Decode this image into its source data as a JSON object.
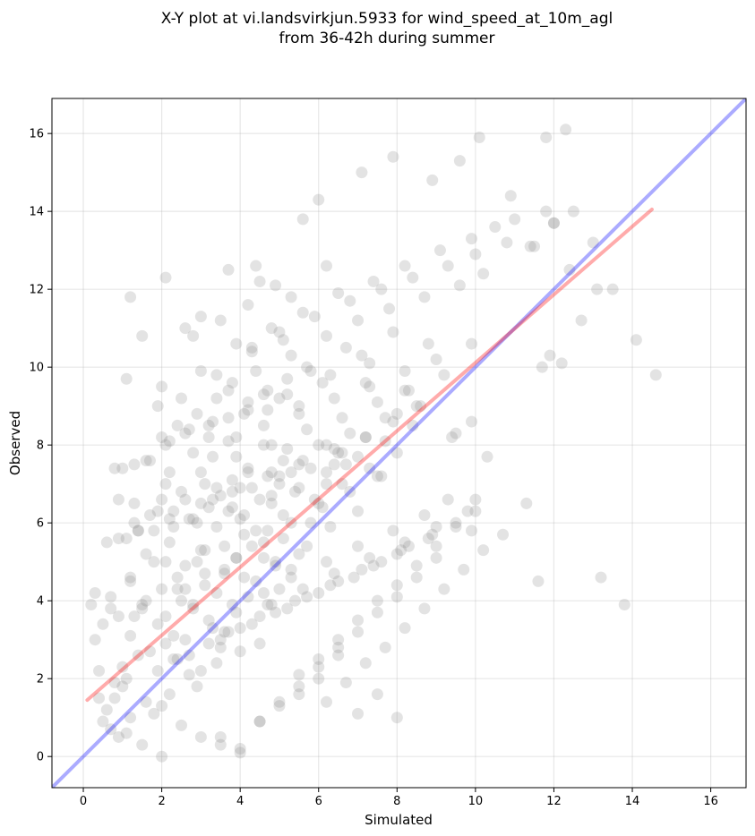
{
  "chart_data": {
    "type": "scatter",
    "title_line1": "X-Y plot at vi.landsvirkjun.5933 for wind_speed_at_10m_agl",
    "title_line2": "from 36-42h during summer",
    "xlabel": "Simulated",
    "ylabel": "Observed",
    "xlim": [
      -0.8,
      16.9
    ],
    "ylim": [
      -0.8,
      16.9
    ],
    "xticks": [
      0,
      2,
      4,
      6,
      8,
      10,
      12,
      14,
      16
    ],
    "yticks": [
      0,
      2,
      4,
      6,
      8,
      10,
      12,
      14,
      16
    ],
    "grid": true,
    "point_color": "#808080",
    "point_opacity": 0.22,
    "reference_line": {
      "color": "#0000ff",
      "opacity": 0.33,
      "x": [
        -0.8,
        16.9
      ],
      "y": [
        -0.8,
        16.9
      ]
    },
    "regression_line": {
      "color": "#ff0000",
      "opacity": 0.33,
      "x": [
        0.1,
        14.5
      ],
      "y": [
        1.45,
        14.05
      ]
    },
    "series": [
      {
        "x": [
          0.7,
          1.6,
          2.4,
          0.9,
          1.2,
          3.0,
          2.2,
          1.8,
          0.5,
          2.9,
          3.4,
          1.1,
          0.8,
          2.6,
          4.0,
          3.7,
          1.4,
          2.0,
          0.6,
          3.2,
          4.5,
          2.7,
          1.9,
          3.9,
          1.0,
          2.3,
          4.8,
          3.5,
          0.4,
          1.7,
          2.8,
          4.2,
          5.0,
          3.3,
          2.1,
          1.3,
          4.4,
          3.8,
          0.3,
          2.5,
          5.3,
          4.6,
          3.1,
          1.5,
          2.4,
          4.9,
          3.6,
          5.5,
          0.9,
          2.0,
          1.2,
          2.6,
          3.9,
          4.3,
          5.1,
          1.8,
          3.0,
          2.2,
          4.7,
          3.4,
          0.7,
          1.6,
          5.8,
          4.1,
          2.9,
          3.7,
          6.0,
          1.1,
          2.3,
          4.5,
          5.4,
          3.2,
          2.7,
          4.0,
          6.2,
          1.4,
          3.5,
          5.0,
          2.0,
          4.8,
          6.4,
          3.8,
          1.9,
          5.6,
          4.2,
          2.5,
          6.6,
          3.3,
          5.2,
          4.6,
          0.5,
          1.2,
          2.1,
          2.8,
          3.4,
          4.1,
          4.9,
          5.7,
          6.3,
          7.0,
          1.5,
          2.4,
          3.1,
          3.9,
          4.6,
          5.3,
          6.1,
          6.8,
          7.5,
          2.9,
          3.6,
          4.4,
          5.1,
          5.9,
          6.6,
          7.3,
          8.0,
          4.0,
          4.8,
          5.5,
          6.2,
          7.0,
          7.7,
          8.4,
          5.0,
          5.8,
          6.5,
          7.2,
          7.9,
          8.6,
          1.0,
          1.9,
          2.7,
          3.5,
          4.3,
          5.2,
          6.0,
          6.9,
          7.6,
          8.3,
          2.3,
          3.2,
          4.0,
          4.9,
          5.7,
          6.5,
          7.4,
          8.1,
          8.9,
          3.6,
          4.5,
          5.4,
          6.3,
          7.1,
          8.0,
          8.8,
          9.5,
          4.7,
          5.6,
          6.4,
          7.3,
          8.2,
          9.0,
          9.8,
          5.3,
          6.2,
          7.0,
          7.9,
          8.7,
          9.3,
          0.6,
          1.4,
          2.2,
          3.0,
          3.8,
          4.7,
          5.5,
          6.4,
          7.2,
          1.7,
          2.6,
          3.4,
          4.2,
          5.1,
          6.0,
          6.8,
          7.7,
          8.5,
          2.1,
          3.0,
          3.9,
          4.8,
          5.7,
          6.6,
          7.5,
          8.3,
          9.2,
          2.8,
          3.7,
          4.6,
          5.5,
          6.4,
          7.3,
          8.2,
          9.0,
          9.9,
          3.3,
          4.2,
          5.2,
          6.1,
          1.3,
          2.0,
          2.9,
          3.7,
          4.4,
          5.3,
          6.2,
          7.0,
          7.8,
          8.7,
          9.6,
          10.2,
          2.5,
          3.4,
          4.3,
          5.0,
          5.9,
          6.8,
          7.6,
          8.4,
          9.3,
          10.0,
          10.8,
          3.9,
          4.8,
          5.6,
          6.5,
          7.4,
          8.2,
          9.1,
          9.9,
          10.5,
          11.0,
          11.5,
          12.0,
          12.5,
          13.0,
          11.8,
          12.3,
          13.5,
          0.2,
          0.4,
          0.8,
          1.1,
          1.5,
          2.0,
          2.5,
          3.0,
          3.5,
          4.0,
          0.3,
          0.7,
          1.2,
          1.6,
          2.1,
          2.6,
          3.1,
          3.6,
          4.1,
          4.6,
          0.9,
          1.3,
          1.8,
          2.3,
          2.8,
          3.3,
          3.8,
          4.3,
          4.8,
          5.3,
          1.0,
          1.6,
          2.2,
          2.7,
          3.2,
          3.7,
          4.2,
          4.7,
          5.2,
          5.7,
          6.2,
          6.7,
          7.2,
          7.7,
          8.2,
          8.7,
          9.2,
          9.7,
          10.2,
          10.7,
          5.5,
          6.0,
          6.5,
          7.0,
          7.5,
          8.0,
          8.5,
          9.0,
          9.5,
          10.0,
          4.5,
          5.0,
          5.5,
          6.0,
          6.5,
          7.0,
          7.5,
          8.0,
          8.5,
          9.0,
          3.5,
          4.0,
          4.5,
          5.0,
          5.5,
          6.0,
          6.5,
          7.0,
          7.5,
          8.0,
          1.2,
          2.1,
          2.6,
          3.0,
          4.4,
          4.9,
          5.6,
          6.0,
          7.1,
          7.9,
          8.9,
          9.6,
          10.1,
          10.9,
          11.4,
          11.8,
          12.0,
          12.4,
          12.7,
          13.1,
          14.1,
          14.6,
          11.7,
          11.9,
          12.2,
          9.5,
          9.9,
          10.0,
          9.9,
          11.3,
          13.2,
          13.8,
          11.6,
          10.3,
          9.4,
          7.6,
          6.7,
          6.2,
          7.2,
          8.0,
          1.9,
          2.1,
          3.0,
          3.5,
          3.7,
          4.5,
          4.2,
          5.3,
          6.2,
          3.8,
          4.6,
          2.8,
          2.0,
          1.5,
          2.4,
          1.1,
          0.8,
          3.2,
          4.1,
          5.0,
          5.8,
          6.7,
          7.3,
          8.2,
          3.4,
          2.6,
          1.7,
          0.9,
          4.3,
          5.1,
          1.3,
          2.2,
          3.1,
          3.9,
          4.7,
          5.5,
          6.3,
          7.1,
          7.9,
          8.8
        ],
        "y": [
          0.7,
          1.4,
          2.5,
          0.5,
          1.0,
          2.2,
          1.6,
          1.1,
          0.9,
          1.8,
          2.4,
          2.0,
          1.5,
          3.0,
          2.7,
          3.2,
          2.6,
          1.3,
          1.2,
          3.5,
          2.9,
          2.1,
          3.4,
          3.7,
          2.3,
          3.1,
          3.9,
          2.8,
          2.2,
          2.7,
          3.8,
          4.1,
          4.3,
          3.3,
          2.9,
          3.6,
          4.5,
          3.9,
          3.0,
          4.0,
          4.8,
          4.2,
          4.4,
          3.9,
          4.6,
          5.0,
          4.7,
          5.2,
          3.6,
          4.3,
          4.5,
          4.9,
          5.1,
          5.4,
          5.6,
          5.0,
          5.3,
          5.5,
          5.8,
          5.9,
          4.1,
          5.2,
          6.0,
          6.2,
          6.0,
          6.3,
          6.5,
          5.6,
          5.9,
          6.6,
          6.8,
          6.4,
          6.1,
          6.9,
          7.0,
          5.8,
          6.7,
          7.2,
          6.6,
          7.3,
          7.5,
          7.1,
          6.3,
          7.6,
          7.4,
          6.8,
          7.8,
          7.7,
          7.9,
          8.0,
          3.4,
          3.1,
          3.6,
          3.9,
          4.2,
          4.6,
          4.9,
          5.4,
          5.9,
          6.3,
          3.8,
          4.3,
          4.7,
          5.1,
          5.5,
          6.0,
          6.4,
          6.8,
          7.2,
          5.0,
          5.4,
          5.8,
          6.2,
          6.6,
          7.0,
          7.4,
          7.8,
          6.1,
          6.5,
          6.9,
          7.3,
          7.7,
          8.1,
          8.5,
          7.0,
          7.4,
          7.8,
          8.2,
          8.6,
          9.0,
          1.8,
          2.2,
          2.6,
          3.0,
          3.4,
          3.8,
          4.2,
          4.6,
          5.0,
          5.4,
          2.5,
          2.9,
          3.3,
          3.7,
          4.1,
          4.5,
          4.9,
          5.3,
          5.7,
          3.2,
          3.6,
          4.0,
          4.4,
          4.8,
          5.2,
          5.6,
          6.0,
          3.9,
          4.3,
          4.7,
          5.1,
          5.5,
          5.9,
          6.3,
          4.6,
          5.0,
          5.4,
          5.8,
          6.2,
          6.6,
          5.5,
          5.8,
          6.1,
          6.5,
          6.8,
          7.2,
          7.5,
          7.9,
          8.2,
          6.2,
          6.6,
          6.9,
          7.3,
          7.6,
          8.0,
          8.3,
          8.7,
          9.0,
          7.0,
          7.3,
          7.7,
          8.0,
          8.4,
          8.7,
          9.1,
          9.4,
          9.8,
          7.8,
          8.1,
          8.5,
          8.8,
          9.2,
          9.5,
          9.9,
          10.2,
          10.6,
          8.6,
          8.9,
          9.3,
          9.6,
          7.5,
          8.2,
          8.8,
          9.4,
          9.9,
          10.3,
          10.8,
          11.2,
          11.5,
          11.8,
          12.1,
          12.4,
          9.2,
          9.8,
          10.4,
          10.9,
          11.3,
          11.7,
          12.0,
          12.3,
          12.6,
          12.9,
          13.2,
          10.6,
          11.0,
          11.4,
          11.9,
          12.2,
          12.6,
          13.0,
          13.3,
          13.6,
          13.8,
          13.1,
          13.7,
          14.0,
          13.2,
          15.9,
          16.1,
          12.0,
          3.9,
          1.5,
          1.9,
          0.6,
          0.3,
          0.0,
          0.8,
          0.5,
          0.3,
          0.1,
          4.2,
          3.8,
          4.6,
          4.0,
          5.0,
          4.3,
          5.3,
          4.8,
          5.7,
          5.1,
          5.6,
          6.0,
          5.8,
          6.3,
          6.1,
          6.6,
          6.4,
          6.9,
          6.7,
          7.3,
          7.4,
          7.6,
          8.1,
          8.4,
          8.2,
          8.7,
          9.1,
          9.4,
          9.7,
          10.0,
          1.4,
          1.9,
          2.4,
          2.8,
          3.3,
          3.8,
          4.3,
          4.8,
          5.3,
          5.7,
          2.1,
          2.5,
          3.0,
          3.5,
          4.0,
          4.4,
          4.9,
          5.4,
          5.9,
          6.3,
          0.9,
          1.4,
          1.8,
          2.3,
          2.8,
          3.2,
          3.7,
          4.1,
          4.6,
          5.1,
          0.5,
          0.2,
          0.9,
          1.3,
          1.6,
          2.0,
          2.6,
          1.1,
          1.6,
          1.0,
          11.8,
          12.3,
          11.0,
          11.3,
          12.6,
          12.1,
          13.8,
          14.3,
          15.0,
          15.4,
          14.8,
          15.3,
          15.9,
          14.4,
          13.1,
          14.0,
          13.7,
          12.5,
          11.2,
          12.0,
          10.7,
          9.8,
          10.0,
          10.3,
          10.1,
          8.3,
          8.6,
          6.6,
          5.8,
          6.5,
          4.6,
          3.9,
          4.5,
          7.7,
          8.2,
          7.2,
          7.5,
          8.0,
          9.6,
          8.8,
          9.0,
          8.0,
          9.9,
          11.2,
          12.5,
          12.2,
          11.6,
          11.8,
          12.6,
          9.6,
          9.3,
          10.8,
          9.5,
          10.8,
          8.5,
          9.7,
          7.4,
          8.5,
          8.8,
          9.2,
          9.9,
          10.5,
          10.1,
          9.4,
          9.2,
          8.3,
          7.6,
          6.6,
          10.5,
          10.7,
          6.5,
          7.3,
          7.0,
          8.2,
          8.9,
          9.0,
          9.8,
          10.3,
          10.9,
          10.6
        ]
      }
    ]
  }
}
